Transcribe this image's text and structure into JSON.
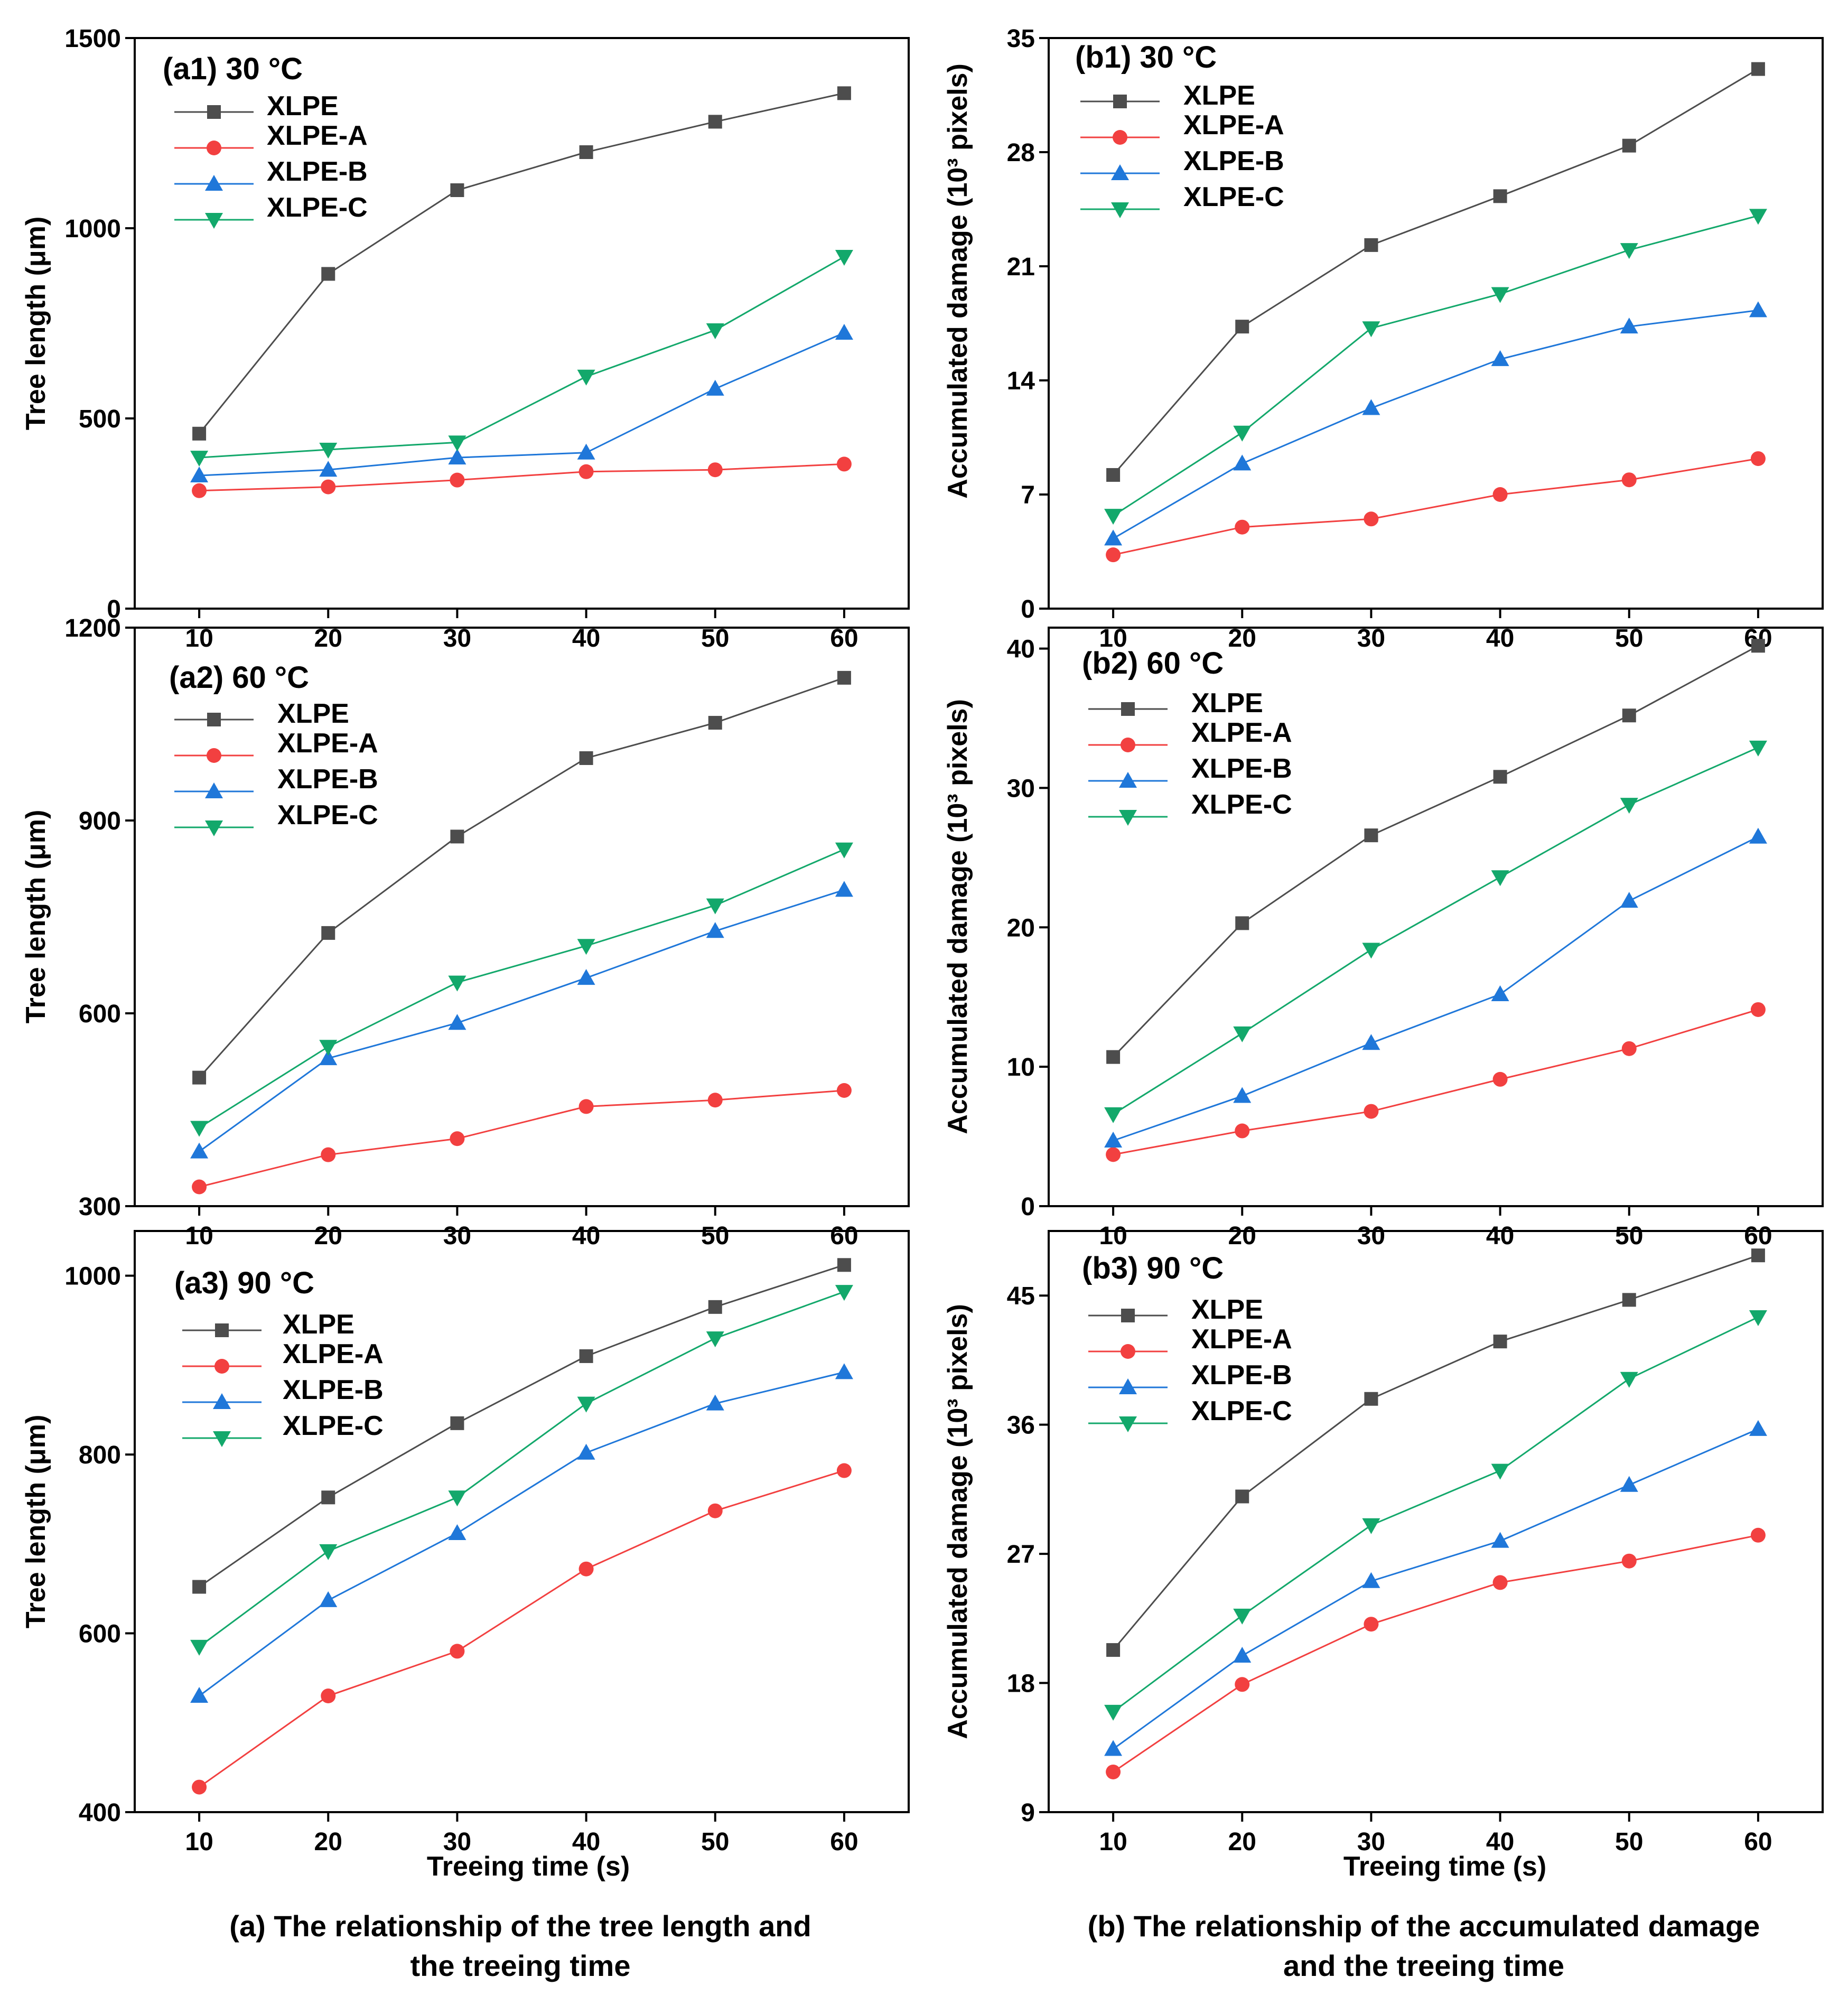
{
  "colors": {
    "XLPE": "#4d4d4d",
    "XLPE-A": "#f24040",
    "XLPE-B": "#1f77d9",
    "XLPE-C": "#13a86b"
  },
  "captions": {
    "left_line1": "(a) The relationship of the tree length and",
    "left_line2": "the treeing time",
    "right_line1": "(b) The relationship of the accumulated damage",
    "right_line2": "and the treeing time"
  },
  "chart_data": [
    {
      "id": "a1",
      "type": "line",
      "title": "(a1) 30 °C",
      "xlabel": "",
      "ylabel": "Tree length (μm)",
      "x": [
        10,
        20,
        30,
        40,
        50,
        60
      ],
      "xticks": [
        "10",
        "20",
        "30",
        "40",
        "50",
        "60"
      ],
      "ylim": [
        0,
        1500
      ],
      "yticks": [
        "0",
        "500",
        "1000",
        "1500"
      ],
      "ytick_values": [
        0,
        500,
        1000,
        1500
      ],
      "series": [
        {
          "name": "XLPE",
          "marker": "square",
          "values": [
            460,
            880,
            1100,
            1200,
            1280,
            1355
          ]
        },
        {
          "name": "XLPE-A",
          "marker": "circle",
          "values": [
            310,
            320,
            338,
            360,
            365,
            380
          ]
        },
        {
          "name": "XLPE-B",
          "marker": "triangle-up",
          "values": [
            350,
            365,
            397,
            410,
            578,
            725
          ]
        },
        {
          "name": "XLPE-C",
          "marker": "triangle-down",
          "values": [
            397,
            418,
            437,
            610,
            732,
            925
          ]
        }
      ]
    },
    {
      "id": "a2",
      "type": "line",
      "title": "(a2) 60 °C",
      "xlabel": "",
      "ylabel": "Tree length (μm)",
      "x": [
        10,
        20,
        30,
        40,
        50,
        60
      ],
      "xticks": [
        "10",
        "20",
        "30",
        "40",
        "50",
        "60"
      ],
      "ylim": [
        300,
        1200
      ],
      "yticks": [
        "300",
        "600",
        "900",
        "1200"
      ],
      "ytick_values": [
        300,
        600,
        900,
        1200
      ],
      "series": [
        {
          "name": "XLPE",
          "marker": "square",
          "values": [
            500,
            725,
            875,
            997,
            1052,
            1122
          ]
        },
        {
          "name": "XLPE-A",
          "marker": "circle",
          "values": [
            330,
            380,
            405,
            455,
            465,
            480
          ]
        },
        {
          "name": "XLPE-B",
          "marker": "triangle-up",
          "values": [
            385,
            530,
            585,
            655,
            728,
            792
          ]
        },
        {
          "name": "XLPE-C",
          "marker": "triangle-down",
          "values": [
            422,
            548,
            648,
            705,
            768,
            855
          ]
        }
      ]
    },
    {
      "id": "a3",
      "type": "line",
      "title": "(a3) 90 °C",
      "xlabel": "Treeing time (s)",
      "ylabel": "Tree length (μm)",
      "x": [
        10,
        20,
        30,
        40,
        50,
        60
      ],
      "xticks": [
        "10",
        "20",
        "30",
        "40",
        "50",
        "60"
      ],
      "ylim": [
        400,
        1050
      ],
      "yticks": [
        "400",
        "600",
        "800",
        "1000"
      ],
      "ytick_values": [
        400,
        600,
        800,
        1000
      ],
      "series": [
        {
          "name": "XLPE",
          "marker": "square",
          "values": [
            652,
            752,
            835,
            910,
            965,
            1012
          ]
        },
        {
          "name": "XLPE-A",
          "marker": "circle",
          "values": [
            428,
            530,
            580,
            672,
            737,
            782
          ]
        },
        {
          "name": "XLPE-B",
          "marker": "triangle-up",
          "values": [
            530,
            637,
            712,
            802,
            857,
            892
          ]
        },
        {
          "name": "XLPE-C",
          "marker": "triangle-down",
          "values": [
            585,
            692,
            752,
            857,
            930,
            982
          ]
        }
      ]
    },
    {
      "id": "b1",
      "type": "line",
      "title": "(b1) 30 °C",
      "xlabel": "",
      "ylabel": "Accumulated damage (10³ pixels)",
      "x": [
        10,
        20,
        30,
        40,
        50,
        60
      ],
      "xticks": [
        "10",
        "20",
        "30",
        "40",
        "50",
        "60"
      ],
      "ylim": [
        0,
        35
      ],
      "yticks": [
        "0",
        "7",
        "14",
        "21",
        "28",
        "35"
      ],
      "ytick_values": [
        0,
        7,
        14,
        21,
        28,
        35
      ],
      "series": [
        {
          "name": "XLPE",
          "marker": "square",
          "values": [
            8.2,
            17.3,
            22.3,
            25.3,
            28.4,
            33.1
          ]
        },
        {
          "name": "XLPE-A",
          "marker": "circle",
          "values": [
            3.3,
            5.0,
            5.5,
            7.0,
            7.9,
            9.2
          ]
        },
        {
          "name": "XLPE-B",
          "marker": "triangle-up",
          "values": [
            4.3,
            8.9,
            12.3,
            15.3,
            17.3,
            18.3
          ]
        },
        {
          "name": "XLPE-C",
          "marker": "triangle-down",
          "values": [
            5.7,
            10.8,
            17.2,
            19.3,
            22.0,
            24.1
          ]
        }
      ]
    },
    {
      "id": "b2",
      "type": "line",
      "title": "(b2) 60 °C",
      "xlabel": "",
      "ylabel": "Accumulated damage (10³ pixels)",
      "x": [
        10,
        20,
        30,
        40,
        50,
        60
      ],
      "xticks": [
        "10",
        "20",
        "30",
        "40",
        "50",
        "60"
      ],
      "ylim": [
        0,
        41.5
      ],
      "yticks": [
        "0",
        "10",
        "20",
        "30",
        "40"
      ],
      "ytick_values": [
        0,
        10,
        20,
        30,
        40
      ],
      "series": [
        {
          "name": "XLPE",
          "marker": "square",
          "values": [
            10.7,
            20.3,
            26.6,
            30.8,
            35.2,
            40.2
          ]
        },
        {
          "name": "XLPE-A",
          "marker": "circle",
          "values": [
            3.7,
            5.4,
            6.8,
            9.1,
            11.3,
            14.1
          ]
        },
        {
          "name": "XLPE-B",
          "marker": "triangle-up",
          "values": [
            4.7,
            7.9,
            11.7,
            15.2,
            21.9,
            26.5
          ]
        },
        {
          "name": "XLPE-C",
          "marker": "triangle-down",
          "values": [
            6.6,
            12.4,
            18.4,
            23.6,
            28.8,
            32.9
          ]
        }
      ]
    },
    {
      "id": "b3",
      "type": "line",
      "title": "(b3) 90 °C",
      "xlabel": "Treeing time (s)",
      "ylabel": "Accumulated damage (10³ pixels)",
      "x": [
        10,
        20,
        30,
        40,
        50,
        60
      ],
      "xticks": [
        "10",
        "20",
        "30",
        "40",
        "50",
        "60"
      ],
      "ylim": [
        9,
        49.5
      ],
      "yticks": [
        "9",
        "18",
        "27",
        "36",
        "45"
      ],
      "ytick_values": [
        9,
        18,
        27,
        36,
        45
      ],
      "series": [
        {
          "name": "XLPE",
          "marker": "square",
          "values": [
            20.3,
            31.0,
            37.8,
            41.8,
            44.7,
            47.8
          ]
        },
        {
          "name": "XLPE-A",
          "marker": "circle",
          "values": [
            11.8,
            17.9,
            22.1,
            25.0,
            26.5,
            28.3
          ]
        },
        {
          "name": "XLPE-B",
          "marker": "triangle-up",
          "values": [
            13.4,
            19.9,
            25.1,
            27.9,
            31.8,
            35.7
          ]
        },
        {
          "name": "XLPE-C",
          "marker": "triangle-down",
          "values": [
            16.0,
            22.7,
            29.0,
            32.8,
            39.2,
            43.5
          ]
        }
      ]
    }
  ]
}
